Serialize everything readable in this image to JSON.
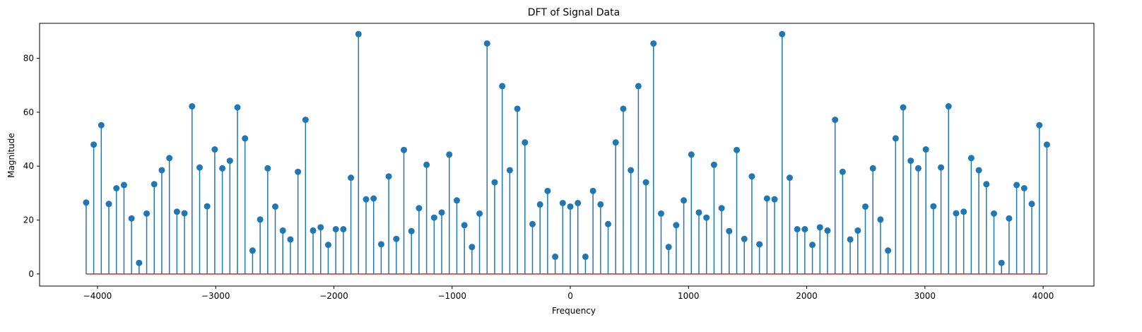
{
  "chart_data": {
    "type": "stem",
    "title": "DFT of Signal Data",
    "xlabel": "Frequency",
    "ylabel": "Magnitude",
    "xlim": [
      -4490,
      4430
    ],
    "ylim": [
      -4.5,
      93
    ],
    "xticks": [
      -4000,
      -3000,
      -2000,
      -1000,
      0,
      1000,
      2000,
      3000,
      4000
    ],
    "xtick_labels": [
      "−4000",
      "−3000",
      "−2000",
      "−1000",
      "0",
      "1000",
      "2000",
      "3000",
      "4000"
    ],
    "yticks": [
      0,
      20,
      40,
      60,
      80
    ],
    "ytick_labels": [
      "0",
      "20",
      "40",
      "60",
      "80"
    ],
    "grid": false,
    "colors": {
      "stem": "#1f77b4",
      "marker": "#1f77b4",
      "baseline": "#d62728"
    },
    "x_start": -4096,
    "x_step": 64,
    "values": [
      26.5,
      48,
      55.2,
      26,
      31.8,
      33,
      20.6,
      4.1,
      22.4,
      33.3,
      38.5,
      43,
      23.1,
      22.5,
      62.2,
      39.5,
      25.1,
      46.2,
      39.2,
      42,
      61.8,
      50.3,
      8.7,
      20.2,
      39.2,
      25,
      16.1,
      12.8,
      37.9,
      57.2,
      16.1,
      17.3,
      10.8,
      16.6,
      16.6,
      35.7,
      89,
      27.7,
      28,
      11,
      36.2,
      13,
      46,
      15.9,
      24.4,
      40.5,
      20.9,
      22.8,
      44.3,
      27.3,
      18.1,
      10,
      22.4,
      85.5,
      34,
      69.7,
      38.5,
      61.3,
      48.8,
      18.5,
      25.8,
      30.8,
      6.4,
      26.3,
      25,
      26.3,
      6.4,
      30.8,
      25.8,
      18.5,
      48.8,
      61.3,
      38.5,
      69.7,
      34,
      85.5,
      22.4,
      10,
      18.1,
      27.3,
      44.3,
      22.8,
      20.9,
      40.5,
      24.4,
      15.9,
      46,
      13,
      36.2,
      11,
      28,
      27.7,
      89,
      35.7,
      16.6,
      16.6,
      10.8,
      17.3,
      16.1,
      57.2,
      37.9,
      12.8,
      16.1,
      25,
      39.2,
      20.2,
      8.7,
      50.3,
      61.8,
      42,
      39.2,
      46.2,
      25.1,
      39.5,
      62.2,
      22.5,
      23.1,
      43,
      38.5,
      33.3,
      22.4,
      4.1,
      20.6,
      33,
      31.8,
      26,
      55.2,
      48
    ]
  }
}
